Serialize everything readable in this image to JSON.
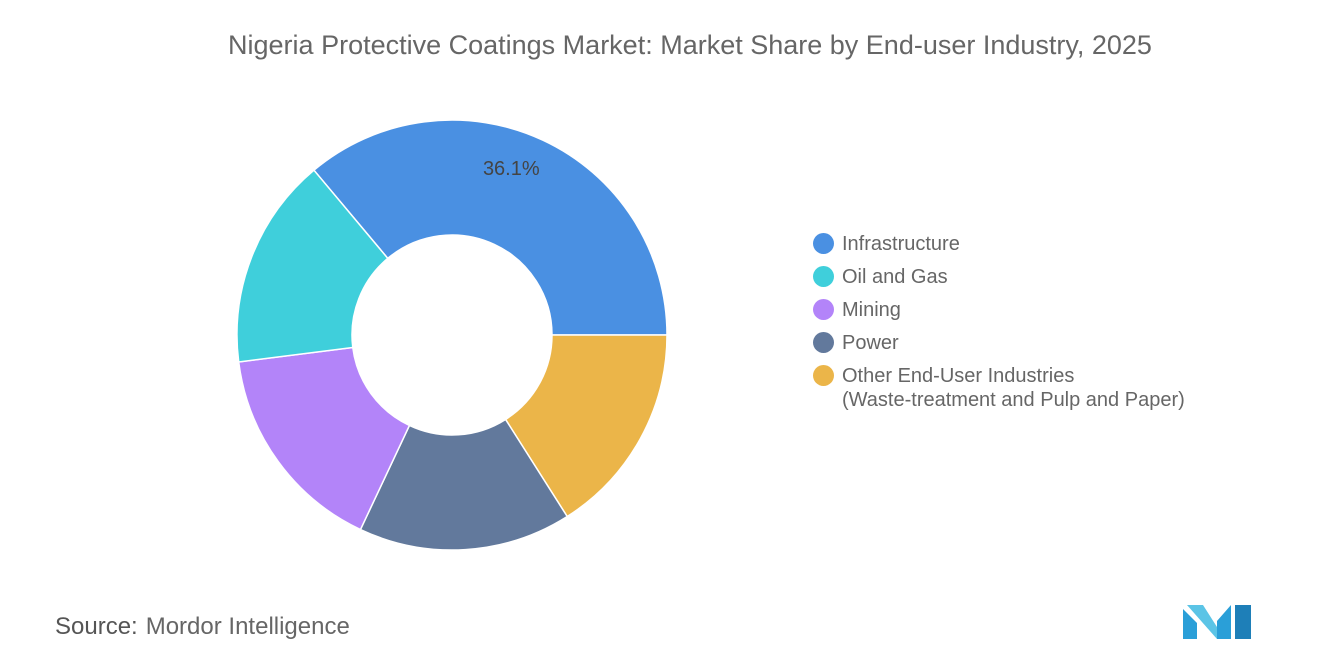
{
  "chart_data": {
    "type": "pie",
    "donut": true,
    "title": "Nigeria Protective Coatings Market: Market Share by End-user Industry, 2025",
    "slices": [
      {
        "label": "Infrastructure",
        "value": 36.1,
        "color": "#4a90e2",
        "data_label": "36.1%"
      },
      {
        "label": "Other End-User Industries (Waste-treatment and Pulp and Paper)",
        "value": 16.0,
        "color": "#ebb549"
      },
      {
        "label": "Power",
        "value": 16.0,
        "color": "#62799c"
      },
      {
        "label": "Mining",
        "value": 16.0,
        "color": "#b384f9"
      },
      {
        "label": "Oil and Gas",
        "value": 15.9,
        "color": "#3fcfdb"
      }
    ],
    "legend": [
      {
        "label": "Infrastructure",
        "color": "#4a90e2"
      },
      {
        "label": "Oil and Gas",
        "color": "#3fcfdb"
      },
      {
        "label": "Mining",
        "color": "#b384f9"
      },
      {
        "label": "Power",
        "color": "#62799c"
      },
      {
        "label": "Other End-User Industries",
        "label2": "(Waste-treatment and Pulp and Paper)",
        "color": "#ebb549"
      }
    ],
    "legend_position": "right"
  },
  "source": {
    "label": "Source:",
    "value": "Mordor Intelligence"
  }
}
